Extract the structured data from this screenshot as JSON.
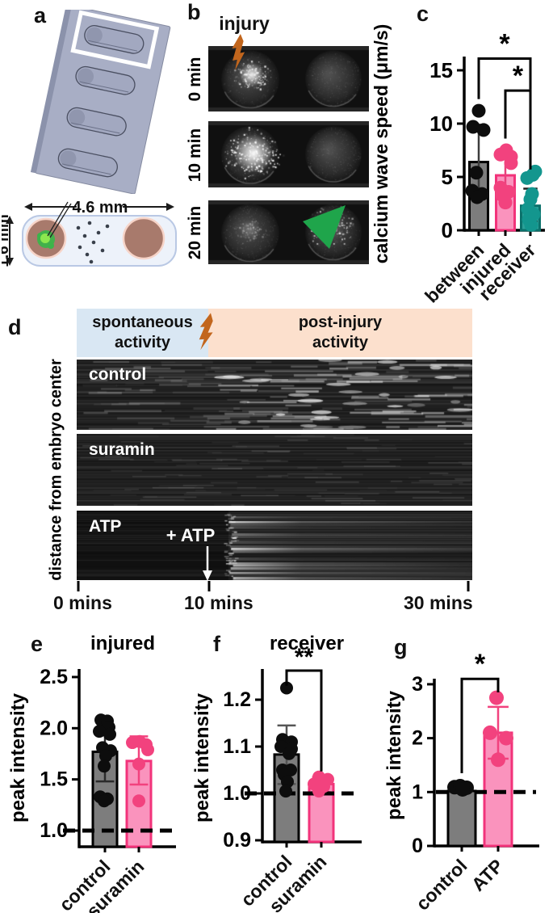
{
  "colors": {
    "gray_bar": "#7d7d7d",
    "gray_stroke": "#000000",
    "pink_fill": "#fa93bd",
    "pink_stroke": "#f2337a",
    "pink_dot": "#f2427e",
    "teal_fill": "#2ba098",
    "teal_stroke": "#0b716b",
    "teal_dot": "#13968e",
    "orange_bolt": "#c2661d",
    "green_arrow": "#1fa54b",
    "header_blue": "#d9e7f3",
    "header_peach": "#fce0cd",
    "embryo_brown": "#a87a6c",
    "embryo_rim": "#f7d4c8",
    "green_blob": "#3cb44a",
    "slab": "#a8aec5"
  },
  "panel_a": {
    "label": "a",
    "width_dim": "4.6 mm",
    "height_dim": "1.6 mm"
  },
  "panel_b": {
    "label": "b",
    "injury": "injury",
    "rows": [
      {
        "time": "0 min",
        "injured_glow": "bright",
        "receiver_glow": "none"
      },
      {
        "time": "10 min",
        "injured_glow": "brighter",
        "receiver_glow": "none"
      },
      {
        "time": "20 min",
        "injured_glow": "dim",
        "receiver_glow": "speckled",
        "arrow": true
      }
    ]
  },
  "panel_d": {
    "label": "d",
    "phase_spontaneous": [
      "spontaneous",
      "activity"
    ],
    "phase_postinjury": [
      "post-injury",
      "activity"
    ],
    "ylabel": "distance from embryo center",
    "rows": [
      {
        "name": "control"
      },
      {
        "name": "suramin"
      },
      {
        "name": "ATP",
        "annotation": "+ ATP"
      }
    ],
    "xticks": [
      "0 mins",
      "10 mins",
      "30 mins"
    ]
  },
  "chart_data": [
    {
      "id": "c",
      "panel_label": "c",
      "type": "bar",
      "title": "",
      "ylabel": "calcium wave speed (μm/s)",
      "yticks": [
        "0",
        "5",
        "10",
        "15"
      ],
      "ylim": [
        0,
        16.3
      ],
      "categories": [
        "between",
        "injured",
        "receiver"
      ],
      "series": [
        {
          "label": "between",
          "bar": 6.4,
          "err": [
            3.2,
            9.9
          ],
          "dots": [
            [
              0,
              11.2
            ],
            [
              -7,
              9.7
            ],
            [
              6,
              9.4
            ],
            [
              -3,
              5.4
            ],
            [
              -8,
              3.7
            ],
            [
              4,
              3.4
            ],
            [
              -2,
              3.1
            ]
          ],
          "fill": "#7d7d7d",
          "stroke": "#000000",
          "dot": "#0d0d0d",
          "errc": "#3d3d3d"
        },
        {
          "label": "injured",
          "bar": 5.15,
          "err": [
            3.3,
            7.0
          ],
          "dots": [
            [
              1,
              7.5
            ],
            [
              -6,
              7.1
            ],
            [
              7,
              6.9
            ],
            [
              7,
              6.3
            ],
            [
              -6,
              4.0
            ],
            [
              4,
              3.6
            ],
            [
              -4,
              3.3
            ],
            [
              0,
              2.6
            ]
          ],
          "fill": "#fa93bd",
          "stroke": "#f2337a",
          "dot": "#f2427e",
          "errc": "#e8417c"
        },
        {
          "label": "receiver",
          "bar": 2.3,
          "err": [
            0.8,
            3.9
          ],
          "dots": [
            [
              6,
              5.5
            ],
            [
              3,
              5.2
            ],
            [
              -4,
              4.9
            ],
            [
              2,
              3.4
            ],
            [
              0,
              2.9
            ],
            [
              -3,
              2.0
            ],
            [
              4,
              1.5
            ],
            [
              -2,
              1.0
            ],
            [
              1,
              0.5
            ]
          ],
          "fill": "#2ba098",
          "stroke": "#0b716b",
          "dot": "#13968e",
          "errc": "#1d1d1d"
        }
      ],
      "sig": [
        {
          "a": 0,
          "b": 2,
          "y": 16.1,
          "alow": 12.3,
          "blow": 13.2,
          "label": "*"
        },
        {
          "a": 1,
          "b": 2,
          "y": 13.1,
          "alow": 8.6,
          "blow": 5.7,
          "label": "*"
        }
      ],
      "dashed_y": null
    },
    {
      "id": "e",
      "panel_label": "e",
      "type": "bar",
      "title": "injured",
      "ylabel": "peak intensity",
      "yticks": [
        "1.0",
        "1.5",
        "2.0",
        "2.5"
      ],
      "ylim": [
        0.84,
        2.6
      ],
      "categories": [
        "control",
        "suramin"
      ],
      "series": [
        {
          "label": "control",
          "bar": 1.77,
          "err": [
            1.48,
            1.95
          ],
          "dots": [
            [
              -5,
              2.08
            ],
            [
              3,
              2.07
            ],
            [
              5,
              2.01
            ],
            [
              -7,
              1.97
            ],
            [
              6,
              1.94
            ],
            [
              -3,
              1.81
            ],
            [
              7,
              1.78
            ],
            [
              1,
              1.73
            ],
            [
              -1,
              1.63
            ],
            [
              -6,
              1.33
            ],
            [
              3,
              1.31
            ],
            [
              -1,
              1.29
            ]
          ],
          "fill": "#7d7d7d",
          "stroke": "#000000",
          "dot": "#0d0d0d",
          "errc": "#2b2b2b"
        },
        {
          "label": "suramin",
          "bar": 1.68,
          "err": [
            1.45,
            1.92
          ],
          "dots": [
            [
              -8,
              1.86
            ],
            [
              1,
              1.87
            ],
            [
              9,
              1.84
            ],
            [
              11,
              1.79
            ],
            [
              0,
              1.65
            ],
            [
              0,
              1.29
            ]
          ],
          "fill": "#fa93bd",
          "stroke": "#f2337a",
          "dot": "#f2427e",
          "errc": "#f2427e"
        }
      ],
      "sig": [],
      "dashed_y": 1.0
    },
    {
      "id": "f",
      "panel_label": "f",
      "type": "bar",
      "title": "receiver",
      "ylabel": "peak intensity",
      "yticks": [
        "0.9",
        "1.0",
        "1.1",
        "1.2"
      ],
      "ylim": [
        0.9,
        1.27
      ],
      "categories": [
        "control",
        "suramin"
      ],
      "series": [
        {
          "label": "control",
          "bar": 1.083,
          "err": [
            1.02,
            1.145
          ],
          "dots": [
            [
              0,
              1.225
            ],
            [
              -5,
              1.115
            ],
            [
              6,
              1.11
            ],
            [
              -7,
              1.1
            ],
            [
              6,
              1.095
            ],
            [
              3,
              1.085
            ],
            [
              -5,
              1.05
            ],
            [
              5,
              1.05
            ],
            [
              -3,
              1.04
            ],
            [
              1,
              1.025
            ],
            [
              -1,
              1.005
            ]
          ],
          "fill": "#7d7d7d",
          "stroke": "#000000",
          "dot": "#0d0d0d",
          "errc": "#555555"
        },
        {
          "label": "suramin",
          "bar": 1.02,
          "err": [
            1.003,
            1.035
          ],
          "dots": [
            [
              -3,
              1.035
            ],
            [
              8,
              1.03
            ],
            [
              -9,
              1.02
            ],
            [
              3,
              1.015
            ],
            [
              -3,
              1.005
            ]
          ],
          "fill": "#fa93bd",
          "stroke": "#f2337a",
          "dot": "#f2427e",
          "errc": "#f2427e"
        }
      ],
      "sig": [
        {
          "a": 0,
          "b": 1,
          "y": 1.262,
          "alow": 1.23,
          "blow": 1.047,
          "label": "**"
        }
      ],
      "dashed_y": 1.0
    },
    {
      "id": "g",
      "panel_label": "g",
      "type": "bar",
      "title": "",
      "ylabel": "peak intensity",
      "yticks": [
        "0",
        "1",
        "2",
        "3"
      ],
      "ylim": [
        0,
        3.1
      ],
      "categories": [
        "control",
        "ATP"
      ],
      "series": [
        {
          "label": "control",
          "bar": 1.02,
          "err": null,
          "dots": [
            [
              -9,
              1.09
            ],
            [
              -2,
              1.11
            ],
            [
              6,
              1.08
            ],
            [
              1,
              1.05
            ]
          ],
          "fill": "#7d7d7d",
          "stroke": "#000000",
          "dot": "#0d0d0d",
          "errc": "#2b2b2b"
        },
        {
          "label": "ATP",
          "bar": 2.1,
          "err": [
            1.62,
            2.58
          ],
          "dots": [
            [
              -2,
              2.75
            ],
            [
              -10,
              2.1
            ],
            [
              10,
              2.0
            ],
            [
              0,
              1.6
            ]
          ],
          "fill": "#fa93bd",
          "stroke": "#f2337a",
          "dot": "#f2427e",
          "errc": "#f2427e"
        }
      ],
      "sig": [
        {
          "a": 0,
          "b": 1,
          "y": 3.1,
          "alow": 1.35,
          "blow": 2.85,
          "label": "*"
        }
      ],
      "dashed_y": 1.0
    }
  ]
}
